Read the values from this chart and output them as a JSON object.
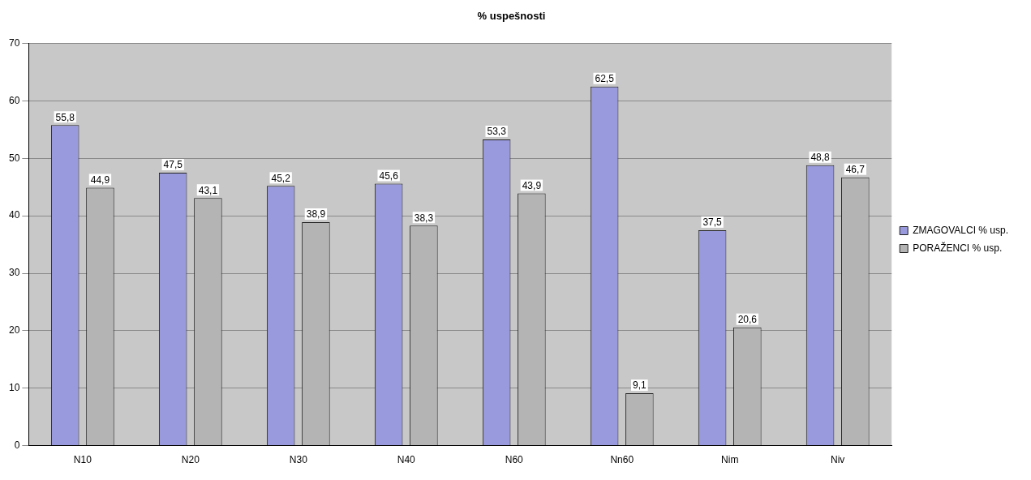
{
  "chart_data": {
    "type": "bar",
    "title": "% uspešnosti",
    "categories": [
      "N10",
      "N20",
      "N30",
      "N40",
      "N60",
      "Nn60",
      "Nim",
      "Niv"
    ],
    "series": [
      {
        "name": "ZMAGOVALCI % usp.",
        "color": "#9999dd",
        "values": [
          55.8,
          47.5,
          45.2,
          45.6,
          53.3,
          62.5,
          37.5,
          48.8
        ],
        "value_labels": [
          "55,8",
          "47,5",
          "45,2",
          "45,6",
          "53,3",
          "62,5",
          "37,5",
          "48,8"
        ]
      },
      {
        "name": "PORAŽENCI % usp.",
        "color": "#b4b4b4",
        "values": [
          44.9,
          43.1,
          38.9,
          38.3,
          43.9,
          9.1,
          20.6,
          46.7
        ],
        "value_labels": [
          "44,9",
          "43,1",
          "38,9",
          "38,3",
          "43,9",
          "9,1",
          "20,6",
          "46,7"
        ]
      }
    ],
    "ylim": [
      0,
      70
    ],
    "yticks": [
      0,
      10,
      20,
      30,
      40,
      50,
      60,
      70
    ],
    "grid": "y",
    "legend": "right"
  }
}
